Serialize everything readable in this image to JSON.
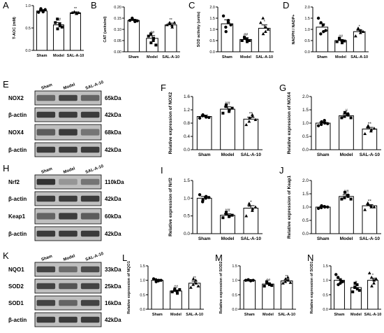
{
  "figure": {
    "panel_letters": [
      "A",
      "B",
      "C",
      "D",
      "E",
      "F",
      "G",
      "H",
      "I",
      "J",
      "K",
      "L",
      "M",
      "N"
    ]
  },
  "chart_data": [
    {
      "id": "A",
      "type": "bar",
      "categories": [
        "Sham",
        "Model",
        "SAL-A-10"
      ],
      "values": [
        0.88,
        0.57,
        0.84
      ],
      "errors": [
        0.03,
        0.05,
        0.02
      ],
      "ylabel": "T-AOC (mM)",
      "ylim": [
        0,
        1.0
      ],
      "yticks": [
        "0.0",
        "0.5",
        "1.0"
      ],
      "sig": [
        "",
        "##",
        "**"
      ],
      "points": [
        [
          0.85,
          0.93,
          0.86,
          0.9,
          0.88,
          0.91
        ],
        [
          0.62,
          0.48,
          0.55,
          0.7,
          0.59,
          0.52
        ],
        [
          0.84,
          0.86,
          0.83,
          0.85,
          0.82,
          0.84
        ]
      ]
    },
    {
      "id": "B",
      "type": "bar",
      "categories": [
        "Sham",
        "Model",
        "SAL-A-10"
      ],
      "values": [
        0.14,
        0.06,
        0.12
      ],
      "errors": [
        0.005,
        0.012,
        0.008
      ],
      "ylabel": "CAT (units/ml)",
      "ylim": [
        0,
        0.2
      ],
      "yticks": [
        "0.00",
        "0.05",
        "0.10",
        "0.15",
        "0.20"
      ],
      "sig": [
        "",
        "##",
        "**"
      ],
      "points": [
        [
          0.14,
          0.145,
          0.135,
          0.15,
          0.14,
          0.138
        ],
        [
          0.07,
          0.04,
          0.06,
          0.08,
          0.05,
          0.03
        ],
        [
          0.12,
          0.13,
          0.11,
          0.125,
          0.118,
          0.13
        ]
      ]
    },
    {
      "id": "C",
      "type": "bar",
      "categories": [
        "Sham",
        "Model",
        "SAL-A-10"
      ],
      "values": [
        1.25,
        0.55,
        1.05
      ],
      "errors": [
        0.18,
        0.08,
        0.15
      ],
      "ylabel": "SOD activity (units)",
      "ylim": [
        0,
        2.0
      ],
      "yticks": [
        "0.0",
        "0.5",
        "1.0",
        "1.5",
        "2.0"
      ],
      "sig": [
        "",
        "##",
        "*"
      ],
      "points": [
        [
          1.6,
          0.9,
          1.3,
          1.1,
          1.4,
          1.2
        ],
        [
          0.5,
          0.6,
          0.45,
          0.65,
          0.55,
          0.5
        ],
        [
          1.3,
          0.8,
          1.1,
          1.5,
          0.9,
          1.0
        ]
      ]
    },
    {
      "id": "D",
      "type": "bar",
      "categories": [
        "Sham",
        "Model",
        "SAL-A-10"
      ],
      "values": [
        1.1,
        0.5,
        0.9
      ],
      "errors": [
        0.15,
        0.05,
        0.08
      ],
      "ylabel": "NADPH / NADP+",
      "ylim": [
        0,
        2.0
      ],
      "yticks": [
        "0.0",
        "0.5",
        "1.0",
        "1.5",
        "2.0"
      ],
      "sig": [
        "",
        "##",
        "*"
      ],
      "points": [
        [
          1.5,
          1.3,
          0.9,
          0.8,
          1.2,
          0.95
        ],
        [
          0.45,
          0.55,
          0.4,
          0.6,
          0.5,
          0.48
        ],
        [
          0.7,
          1.05,
          0.95,
          1.0,
          0.85,
          0.9
        ]
      ]
    },
    {
      "id": "F",
      "type": "bar",
      "categories": [
        "Sham",
        "Model",
        "SAL-A-10"
      ],
      "values": [
        1.0,
        1.22,
        0.92
      ],
      "errors": [
        0.04,
        0.07,
        0.06
      ],
      "ylabel": "Relative expression of NOX2",
      "ylim": [
        0,
        1.6
      ],
      "yticks": [
        "0.0",
        "0.4",
        "0.8",
        "1.2",
        "1.6"
      ],
      "sig": [
        "",
        "##",
        "**"
      ],
      "points": [
        [
          0.95,
          1.05,
          0.98,
          1.02,
          1.0,
          0.97
        ],
        [
          1.1,
          1.35,
          1.2,
          1.3,
          1.15,
          1.25
        ],
        [
          0.75,
          0.95,
          1.0,
          0.85,
          1.05,
          0.9
        ]
      ]
    },
    {
      "id": "G",
      "type": "bar",
      "categories": [
        "Sham",
        "Model",
        "SAL-A-10"
      ],
      "values": [
        1.0,
        1.28,
        0.78
      ],
      "errors": [
        0.04,
        0.06,
        0.06
      ],
      "ylabel": "Relative expression of NOX4",
      "ylim": [
        0,
        2.0
      ],
      "yticks": [
        "0.0",
        "0.5",
        "1.0",
        "1.5",
        "2.0"
      ],
      "sig": [
        "",
        "#",
        "**"
      ],
      "points": [
        [
          0.9,
          1.05,
          1.0,
          0.95,
          1.1,
          0.98
        ],
        [
          1.2,
          1.4,
          1.3,
          1.25,
          1.35,
          1.2
        ],
        [
          0.6,
          0.9,
          0.75,
          0.85,
          0.7,
          0.8
        ]
      ]
    },
    {
      "id": "I",
      "type": "bar",
      "categories": [
        "Sham",
        "Model",
        "SAL-A-10"
      ],
      "values": [
        1.0,
        0.52,
        0.72
      ],
      "errors": [
        0.05,
        0.04,
        0.07
      ],
      "ylabel": "Relative expression of Nrf2",
      "ylim": [
        0,
        1.5
      ],
      "yticks": [
        "0.0",
        "0.5",
        "1.0",
        "1.5"
      ],
      "sig": [
        "",
        "##",
        "*"
      ],
      "points": [
        [
          1.1,
          0.95,
          1.05,
          0.9,
          1.0,
          1.02
        ],
        [
          0.45,
          0.6,
          0.5,
          0.55,
          0.48,
          0.52
        ],
        [
          0.5,
          0.8,
          0.7,
          0.85,
          0.65,
          0.75
        ]
      ]
    },
    {
      "id": "J",
      "type": "bar",
      "categories": [
        "Sham",
        "Model",
        "SAL-A-10"
      ],
      "values": [
        1.0,
        1.4,
        1.05
      ],
      "errors": [
        0.03,
        0.06,
        0.04
      ],
      "ylabel": "Relative expression of Keap1",
      "ylim": [
        0,
        2.0
      ],
      "yticks": [
        "0.0",
        "0.5",
        "1.0",
        "1.5",
        "2.0"
      ],
      "sig": [
        "",
        "##",
        "**"
      ],
      "points": [
        [
          0.95,
          1.05,
          1.0,
          0.98,
          1.02,
          1.0
        ],
        [
          1.3,
          1.55,
          1.4,
          1.35,
          1.45,
          1.3
        ],
        [
          0.9,
          1.1,
          1.0,
          1.15,
          1.05,
          1.0
        ]
      ]
    },
    {
      "id": "L",
      "type": "bar",
      "categories": [
        "Sham",
        "Model",
        "SAL-A-10"
      ],
      "values": [
        1.0,
        0.63,
        0.9
      ],
      "errors": [
        0.03,
        0.03,
        0.07
      ],
      "ylabel": "Relative expression of NQO1",
      "ylim": [
        0,
        1.5
      ],
      "yticks": [
        "0.0",
        "0.5",
        "1.0",
        "1.5"
      ],
      "sig": [
        "",
        "##",
        "**"
      ],
      "points": [
        [
          1.05,
          0.95,
          1.0,
          1.02,
          0.98,
          1.0
        ],
        [
          0.6,
          0.7,
          0.55,
          0.65,
          0.62,
          0.68
        ],
        [
          0.75,
          1.05,
          0.9,
          0.85,
          1.0,
          0.8
        ]
      ]
    },
    {
      "id": "M",
      "type": "bar",
      "categories": [
        "Sham",
        "Model",
        "SAL-A-10"
      ],
      "values": [
        1.0,
        0.87,
        0.98
      ],
      "errors": [
        0.01,
        0.03,
        0.04
      ],
      "ylabel": "Relative expression of SOD2",
      "ylim": [
        0,
        1.5
      ],
      "yticks": [
        "0.0",
        "0.5",
        "1.0",
        "1.5"
      ],
      "sig": [
        "",
        "##",
        "**"
      ],
      "points": [
        [
          1.0,
          1.02,
          0.99,
          1.01,
          0.98,
          1.0
        ],
        [
          0.8,
          0.9,
          0.85,
          0.95,
          0.88,
          0.82
        ],
        [
          0.9,
          1.05,
          1.0,
          0.95,
          1.1,
          0.92
        ]
      ]
    },
    {
      "id": "N",
      "type": "bar",
      "categories": [
        "Sham",
        "Model",
        "SAL-A-10"
      ],
      "values": [
        1.0,
        0.75,
        1.0
      ],
      "errors": [
        0.06,
        0.07,
        0.07
      ],
      "ylabel": "Relative expression of SOD1",
      "ylim": [
        0,
        1.5
      ],
      "yticks": [
        "0.0",
        "0.5",
        "1.0",
        "1.5"
      ],
      "sig": [
        "",
        "#",
        "*"
      ],
      "points": [
        [
          1.2,
          0.85,
          1.0,
          1.1,
          0.9,
          0.95
        ],
        [
          0.6,
          0.9,
          0.7,
          0.75,
          0.85,
          0.65
        ],
        [
          1.25,
          0.8,
          1.0,
          1.1,
          0.9,
          1.05
        ]
      ]
    }
  ],
  "blots": [
    {
      "id": "E",
      "lanes": [
        "Sham",
        "Model",
        "SAL-A-10"
      ],
      "rows": [
        {
          "label": "NOX2",
          "kda": "65kDa",
          "intensity": [
            0.55,
            0.75,
            0.55
          ]
        },
        {
          "label": "β-actin",
          "kda": "42kDa",
          "intensity": [
            0.8,
            0.8,
            0.8
          ]
        },
        {
          "label": "NOX4",
          "kda": "68kDa",
          "intensity": [
            0.6,
            0.8,
            0.45
          ]
        },
        {
          "label": "β-actin",
          "kda": "42kDa",
          "intensity": [
            0.8,
            0.8,
            0.8
          ]
        }
      ]
    },
    {
      "id": "H",
      "lanes": [
        "Sham",
        "Model",
        "SAL-A-10"
      ],
      "rows": [
        {
          "label": "Nrf2",
          "kda": "110kDa",
          "intensity": [
            0.85,
            0.25,
            0.45
          ]
        },
        {
          "label": "β-actin",
          "kda": "42kDa",
          "intensity": [
            0.8,
            0.8,
            0.8
          ]
        },
        {
          "label": "Keap1",
          "kda": "60kDa",
          "intensity": [
            0.55,
            0.8,
            0.6
          ]
        },
        {
          "label": "β-actin",
          "kda": "42kDa",
          "intensity": [
            0.8,
            0.8,
            0.8
          ]
        }
      ]
    },
    {
      "id": "K",
      "lanes": [
        "Sham",
        "Model",
        "SAL-A-10"
      ],
      "rows": [
        {
          "label": "NQO1",
          "kda": "33kDa",
          "intensity": [
            0.75,
            0.5,
            0.7
          ]
        },
        {
          "label": "SOD2",
          "kda": "25kDa",
          "intensity": [
            0.75,
            0.65,
            0.75
          ]
        },
        {
          "label": "SOD1",
          "kda": "16kDa",
          "intensity": [
            0.75,
            0.55,
            0.75
          ]
        },
        {
          "label": "β-actin",
          "kda": "42kDa",
          "intensity": [
            0.8,
            0.8,
            0.8
          ]
        }
      ]
    }
  ],
  "colors": {
    "bar": "#ffffff",
    "axis": "#000000",
    "point": "#000000",
    "band": "#1a1a1a",
    "blot_bg": "#bfbfbf"
  }
}
